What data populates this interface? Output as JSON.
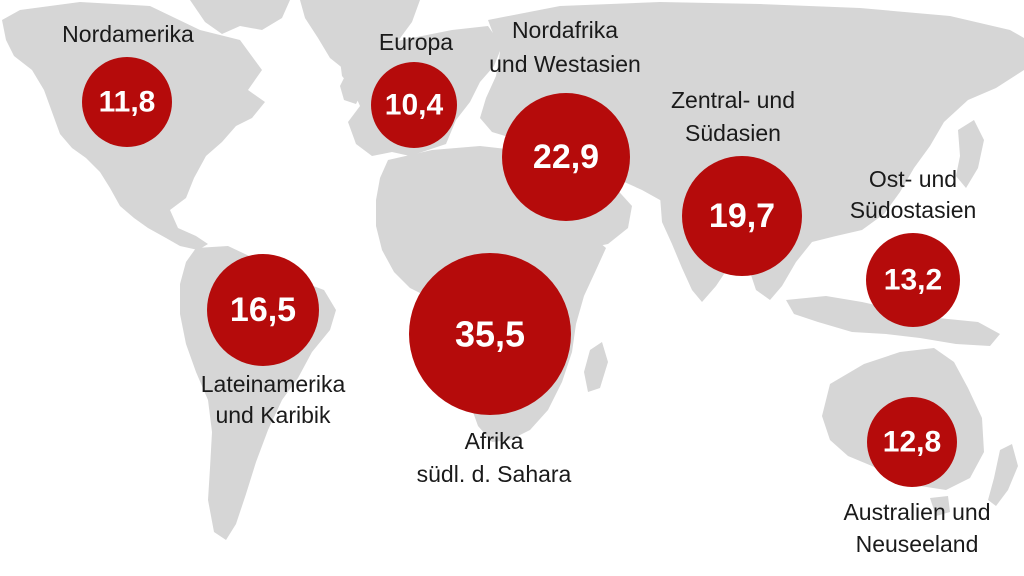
{
  "map": {
    "land_color": "#d6d6d6",
    "bubble_color": "#b50b0b",
    "regions": [
      {
        "id": "nordamerika",
        "label_lines": [
          "Nordamerika"
        ],
        "value": "11,8"
      },
      {
        "id": "europa",
        "label_lines": [
          "Europa"
        ],
        "value": "10,4"
      },
      {
        "id": "nordafrika-westasien",
        "label_lines": [
          "Nordafrika",
          "und Westasien"
        ],
        "value": "22,9"
      },
      {
        "id": "zentral-suedasien",
        "label_lines": [
          "Zentral- und",
          "Südasien"
        ],
        "value": "19,7"
      },
      {
        "id": "ost-suedostasien",
        "label_lines": [
          "Ost- und",
          "Südostasien"
        ],
        "value": "13,2"
      },
      {
        "id": "lateinamerika-karibik",
        "label_lines": [
          "Lateinamerika",
          "und Karibik"
        ],
        "value": "16,5"
      },
      {
        "id": "afrika-suedl-sahara",
        "label_lines": [
          "Afrika",
          "südl. d. Sahara"
        ],
        "value": "35,5"
      },
      {
        "id": "australien-neuseeland",
        "label_lines": [
          "Australien und",
          "Neuseeland"
        ],
        "value": "12,8"
      }
    ]
  }
}
